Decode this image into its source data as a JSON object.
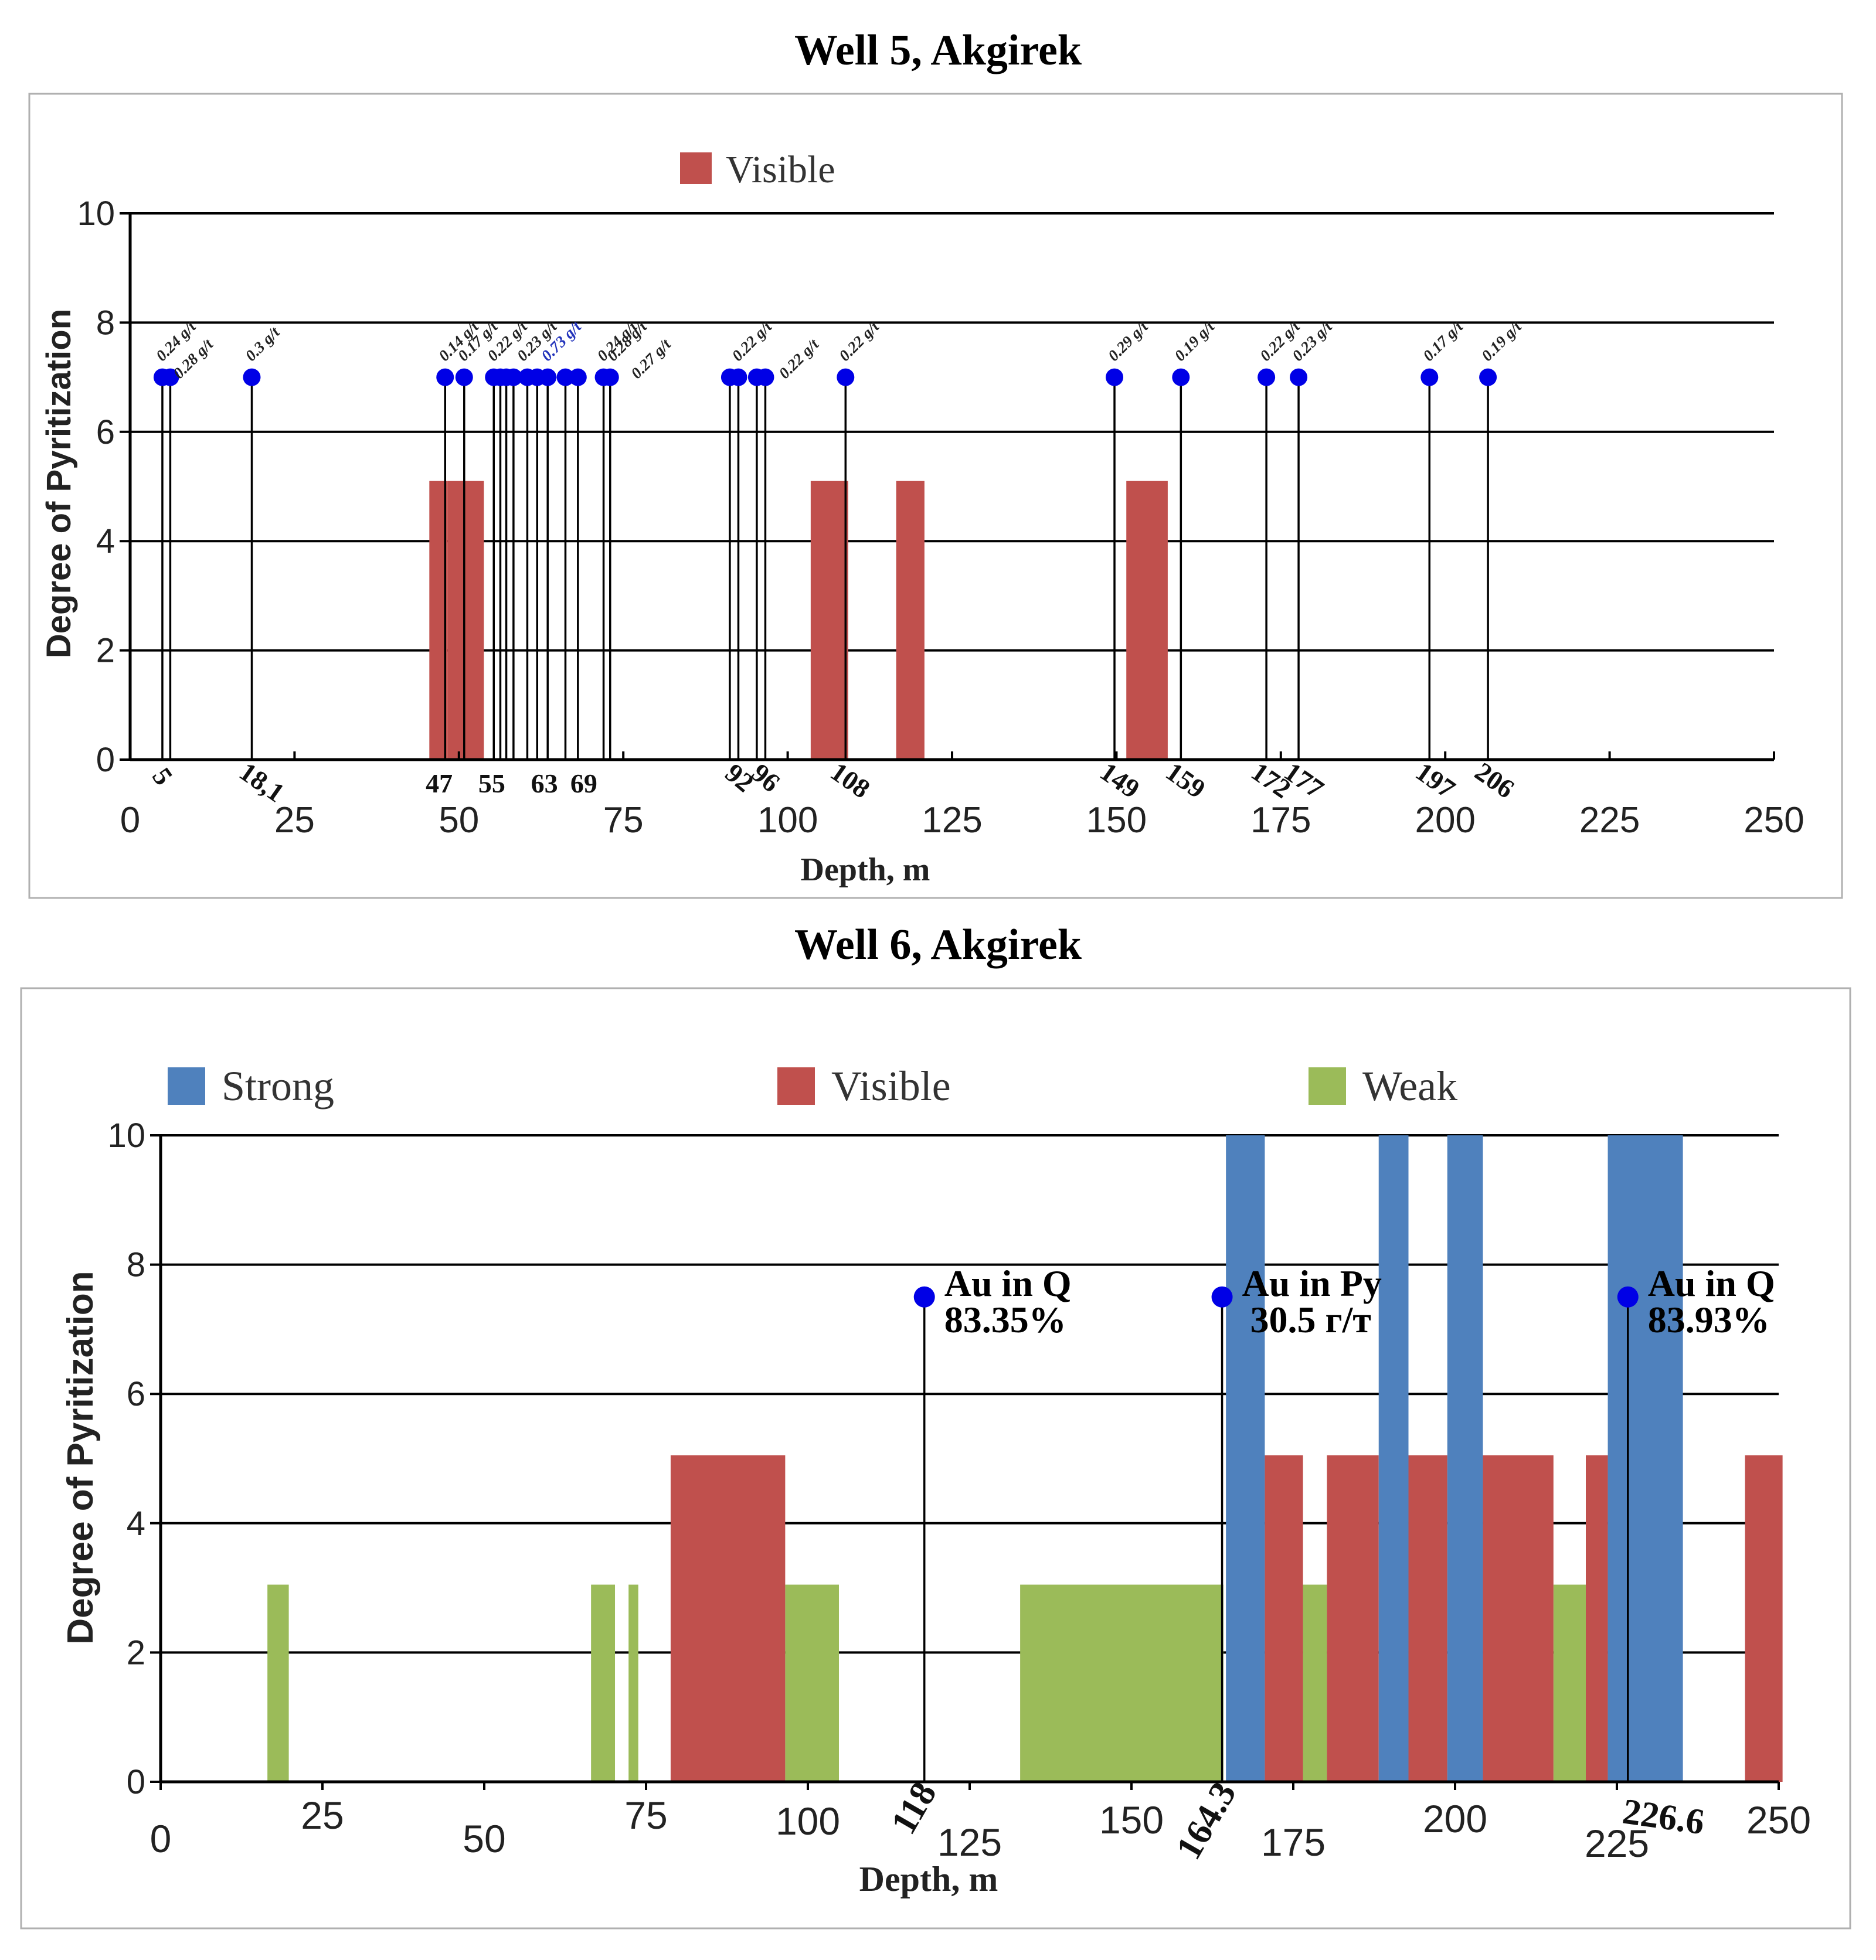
{
  "chart_data": [
    {
      "type": "bar",
      "title": "Well 5, Akgirek",
      "xlabel": "Depth, m",
      "ylabel": "Degree of Pyritization",
      "xlim": [
        0,
        250
      ],
      "ylim": [
        0,
        10
      ],
      "x_ticks": [
        0,
        25,
        50,
        75,
        100,
        125,
        150,
        175,
        200,
        225,
        250
      ],
      "y_ticks": [
        0,
        2,
        4,
        6,
        8,
        10
      ],
      "grid": true,
      "legend": [
        {
          "name": "Visible",
          "color": "#c0504d"
        }
      ],
      "series": [
        {
          "name": "Visible",
          "color": "#c0504d",
          "bars": [
            {
              "start": 45.5,
              "end": 48.3,
              "value": 5.1
            },
            {
              "start": 48.3,
              "end": 53.8,
              "value": 5.1
            },
            {
              "start": 103.5,
              "end": 109.2,
              "value": 5.1
            },
            {
              "start": 116.5,
              "end": 120.8,
              "value": 5.1
            },
            {
              "start": 151.5,
              "end": 157.8,
              "value": 5.1
            }
          ]
        }
      ],
      "samples": {
        "marker_y": 7,
        "color": "#0000e6",
        "points": [
          4.9,
          6.1,
          18.5,
          47.9,
          50.8,
          55.3,
          56.3,
          57.2,
          58.3,
          60.4,
          61.9,
          63.5,
          66.2,
          68.1,
          72.0,
          73.0,
          91.2,
          92.5,
          95.3,
          96.6,
          108.8,
          149.7,
          159.8,
          172.8,
          177.7,
          197.6,
          206.5
        ],
        "grade_labels": [
          {
            "x": 4.9,
            "text": "0.24 g/t"
          },
          {
            "x": 6.1,
            "text": "0.28 g/t",
            "offset": 2
          },
          {
            "x": 18.5,
            "text": "0.3 g/t"
          },
          {
            "x": 47.9,
            "text": "0.14 g/t"
          },
          {
            "x": 50.8,
            "text": "0.17 g/t"
          },
          {
            "x": 55.3,
            "text": "0.22 g/t"
          },
          {
            "x": 59.8,
            "text": "0.23 g/t"
          },
          {
            "x": 63.5,
            "text": "0.73 g/t",
            "color": "#2233bb"
          },
          {
            "x": 72.0,
            "text": "0.24 g/t"
          },
          {
            "x": 73.5,
            "text": "0.28 g/t"
          },
          {
            "x": 75.0,
            "text": "0.27 g/t",
            "offset": 3
          },
          {
            "x": 92.5,
            "text": "0.22 g/t"
          },
          {
            "x": 97.5,
            "text": "0.22 g/t",
            "offset": 3
          },
          {
            "x": 108.8,
            "text": "0.22 g/t"
          },
          {
            "x": 149.7,
            "text": "0.29 g/t"
          },
          {
            "x": 159.8,
            "text": "0.19 g/t"
          },
          {
            "x": 172.8,
            "text": "0.22 g/t"
          },
          {
            "x": 177.7,
            "text": "0.23 g/t"
          },
          {
            "x": 197.6,
            "text": "0.17 g/t"
          },
          {
            "x": 206.5,
            "text": "0.19 g/t"
          }
        ],
        "depth_labels": [
          {
            "x": 5,
            "text": "5",
            "rot": 55
          },
          {
            "x": 18.1,
            "text": "18,1",
            "rot": 35
          },
          {
            "x": 47,
            "text": "47",
            "rot": 0
          },
          {
            "x": 55,
            "text": "55",
            "rot": 0
          },
          {
            "x": 63,
            "text": "63",
            "rot": 0
          },
          {
            "x": 69,
            "text": "69",
            "rot": 0
          },
          {
            "x": 92,
            "text": "92",
            "rot": 40
          },
          {
            "x": 96,
            "text": "96",
            "rot": 40
          },
          {
            "x": 108,
            "text": "108",
            "rot": 35
          },
          {
            "x": 149,
            "text": "149",
            "rot": 35
          },
          {
            "x": 159,
            "text": "159",
            "rot": 35
          },
          {
            "x": 172,
            "text": "172",
            "rot": 35
          },
          {
            "x": 177,
            "text": "177",
            "rot": 35
          },
          {
            "x": 197,
            "text": "197",
            "rot": 35
          },
          {
            "x": 206,
            "text": "206",
            "rot": 35
          }
        ]
      }
    },
    {
      "type": "bar",
      "title": "Well 6, Akgirek",
      "xlabel": "Depth, m",
      "ylabel": "Degree of Pyritization",
      "xlim": [
        0,
        250
      ],
      "ylim": [
        0,
        10
      ],
      "x_ticks": [
        0,
        25,
        50,
        75,
        100,
        125,
        150,
        175,
        200,
        225,
        250
      ],
      "y_ticks": [
        0,
        2,
        4,
        6,
        8,
        10
      ],
      "grid": true,
      "legend": [
        {
          "name": "Strong",
          "color": "#4f81bd"
        },
        {
          "name": "Visible",
          "color": "#c0504d"
        },
        {
          "name": "Weak",
          "color": "#9bbb59"
        }
      ],
      "series": [
        {
          "name": "Weak",
          "color": "#9bbb59",
          "bars": [
            {
              "start": 16.5,
              "end": 19.8,
              "value": 3.05
            },
            {
              "start": 66.5,
              "end": 70.2,
              "value": 3.05
            },
            {
              "start": 72.3,
              "end": 73.8,
              "value": 3.05
            },
            {
              "start": 96.5,
              "end": 104.8,
              "value": 3.05
            },
            {
              "start": 132.8,
              "end": 164.2,
              "value": 3.05
            },
            {
              "start": 176.5,
              "end": 180.2,
              "value": 3.05
            },
            {
              "start": 215.2,
              "end": 220.2,
              "value": 3.05
            }
          ]
        },
        {
          "name": "Visible",
          "color": "#c0504d",
          "bars": [
            {
              "start": 78.8,
              "end": 96.5,
              "value": 5.05
            },
            {
              "start": 170.6,
              "end": 176.5,
              "value": 5.05
            },
            {
              "start": 180.2,
              "end": 188.2,
              "value": 5.05
            },
            {
              "start": 192.8,
              "end": 198.8,
              "value": 5.05
            },
            {
              "start": 204.3,
              "end": 215.2,
              "value": 5.05
            },
            {
              "start": 220.2,
              "end": 223.6,
              "value": 5.05
            },
            {
              "start": 244.8,
              "end": 250.6,
              "value": 5.05
            }
          ]
        },
        {
          "name": "Strong",
          "color": "#4f81bd",
          "bars": [
            {
              "start": 164.6,
              "end": 170.6,
              "value": 10
            },
            {
              "start": 188.2,
              "end": 192.8,
              "value": 10
            },
            {
              "start": 198.8,
              "end": 204.3,
              "value": 10
            },
            {
              "start": 223.6,
              "end": 235.2,
              "value": 10
            }
          ]
        }
      ],
      "samples": {
        "marker_y": 7.5,
        "color": "#0000e6",
        "points": [
          118.0,
          164.0,
          226.7
        ],
        "annotations": [
          {
            "x": 118.0,
            "line1": "Au in Q",
            "line2": "83.35%"
          },
          {
            "x": 164.0,
            "line1": "Au in Py",
            "line2": "30.5 г/т"
          },
          {
            "x": 226.7,
            "line1": "Au in Q",
            "line2": "83.93%"
          }
        ],
        "depth_labels": [
          {
            "x": 118,
            "text": "118",
            "rot": -60
          },
          {
            "x": 164.3,
            "text": "164.3",
            "rot": -60
          },
          {
            "x": 226.6,
            "text": "226.6",
            "rot": 8
          }
        ]
      }
    }
  ]
}
